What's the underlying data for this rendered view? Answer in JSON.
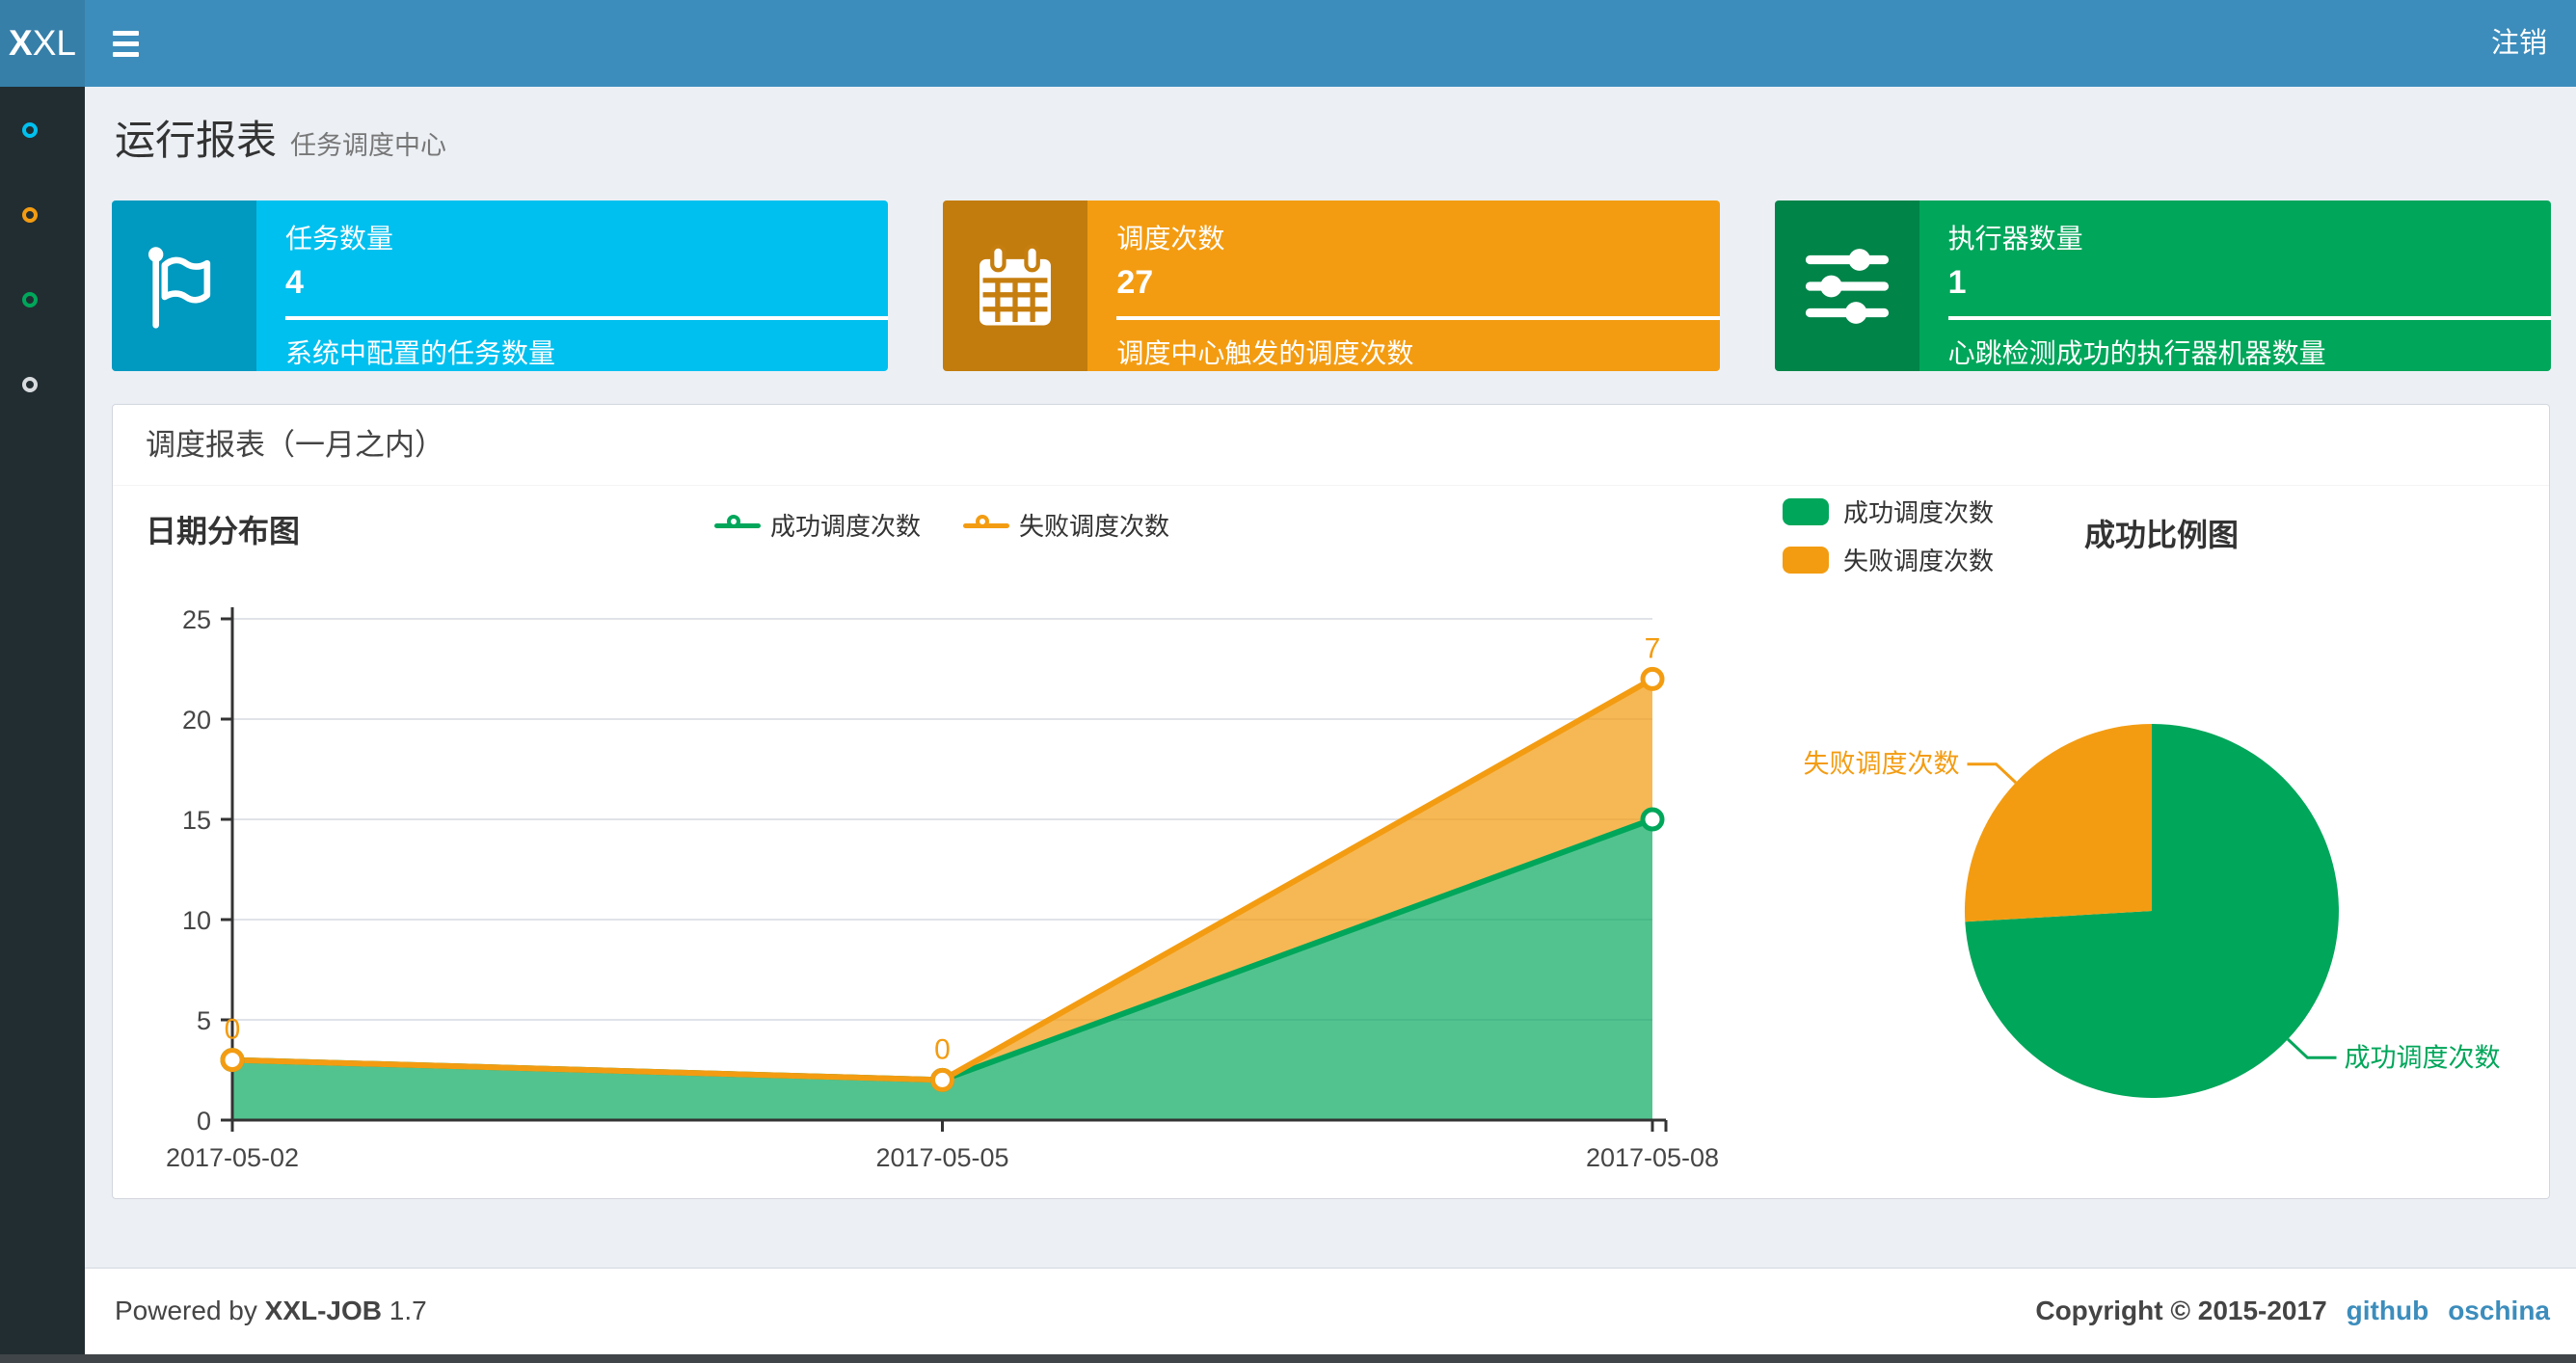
{
  "header": {
    "logo_text": "XXL",
    "logout_label": "注销"
  },
  "sidebar": {
    "items": [
      {
        "name": "sidebar-item-report",
        "icon": "circle-o-icon",
        "color": "#00c0ef"
      },
      {
        "name": "sidebar-item-job",
        "icon": "circle-o-icon",
        "color": "#f39c12"
      },
      {
        "name": "sidebar-item-log",
        "icon": "circle-o-icon",
        "color": "#00a65a"
      },
      {
        "name": "sidebar-item-executor",
        "icon": "circle-o-icon",
        "color": "#d8dcde"
      }
    ]
  },
  "page_header": {
    "title": "运行报表",
    "subtitle": "任务调度中心"
  },
  "stat_boxes": [
    {
      "title": "任务数量",
      "value": "4",
      "description": "系统中配置的任务数量",
      "color": "#00c0ef",
      "icon": "flag-icon"
    },
    {
      "title": "调度次数",
      "value": "27",
      "description": "调度中心触发的调度次数",
      "color": "#f39c12",
      "icon": "calendar-icon"
    },
    {
      "title": "执行器数量",
      "value": "1",
      "description": "心跳检测成功的执行器机器数量",
      "color": "#00a65a",
      "icon": "sliders-icon"
    }
  ],
  "panel": {
    "title": "调度报表（一月之内）"
  },
  "chart_data": [
    {
      "type": "area",
      "title": "日期分布图",
      "x": [
        "2017-05-02",
        "2017-05-05",
        "2017-05-08"
      ],
      "series": [
        {
          "name": "成功调度次数",
          "values": [
            3,
            2,
            15
          ],
          "color": "#00a65a"
        },
        {
          "name": "失败调度次数",
          "values": [
            0,
            0,
            7
          ],
          "color": "#f39c12",
          "point_labels": [
            "0",
            "0",
            "7"
          ]
        }
      ],
      "stacked": true,
      "xlabel": "",
      "ylabel": "",
      "ylim": [
        0,
        25
      ],
      "yticks": [
        0,
        5,
        10,
        15,
        20,
        25
      ],
      "grid": true,
      "legend_position": "top-center"
    },
    {
      "type": "pie",
      "title": "成功比例图",
      "slices": [
        {
          "label": "成功调度次数",
          "value": 20,
          "color": "#00a65a"
        },
        {
          "label": "失败调度次数",
          "value": 7,
          "color": "#f39c12"
        }
      ],
      "legend_position": "top-left"
    }
  ],
  "footer": {
    "powered_by": "Powered by",
    "product": "XXL-JOB",
    "version": "1.7",
    "copyright": "Copyright © 2015-2017",
    "links": [
      {
        "label": "github"
      },
      {
        "label": "oschina"
      }
    ],
    "link_color": "#3c8dbc"
  }
}
